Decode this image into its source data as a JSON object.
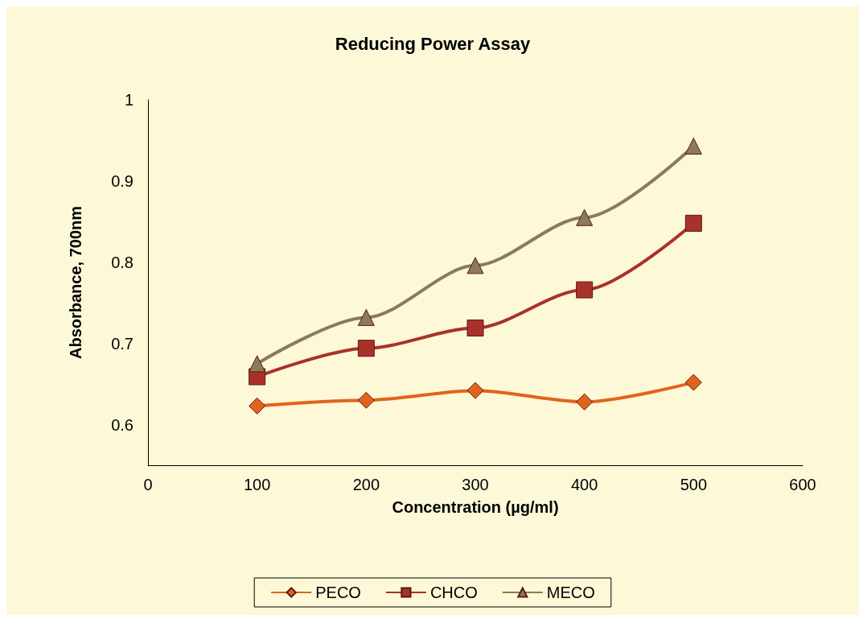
{
  "chart_data": {
    "type": "line",
    "title": "Reducing Power Assay",
    "xlabel": "Concentration (µg/ml)",
    "ylabel": "Absorbance, 700nm",
    "x": [
      100,
      200,
      300,
      400,
      500
    ],
    "series": [
      {
        "name": "PECO",
        "color": "#e2641c",
        "marker": "diamond",
        "values": [
          0.623,
          0.63,
          0.642,
          0.628,
          0.652
        ]
      },
      {
        "name": "CHCO",
        "color": "#a8322a",
        "marker": "square",
        "values": [
          0.659,
          0.694,
          0.719,
          0.766,
          0.848
        ]
      },
      {
        "name": "MECO",
        "color": "#8b7a5c",
        "marker": "triangle",
        "values": [
          0.675,
          0.732,
          0.796,
          0.855,
          0.943
        ]
      }
    ],
    "xlim": [
      0,
      600
    ],
    "xticks": [
      0,
      100,
      200,
      300,
      400,
      500,
      600
    ],
    "ylim": [
      0.55,
      1
    ],
    "yticks": [
      0.6,
      0.7,
      0.8,
      0.9,
      1
    ],
    "grid": false,
    "legend": "bottom"
  }
}
